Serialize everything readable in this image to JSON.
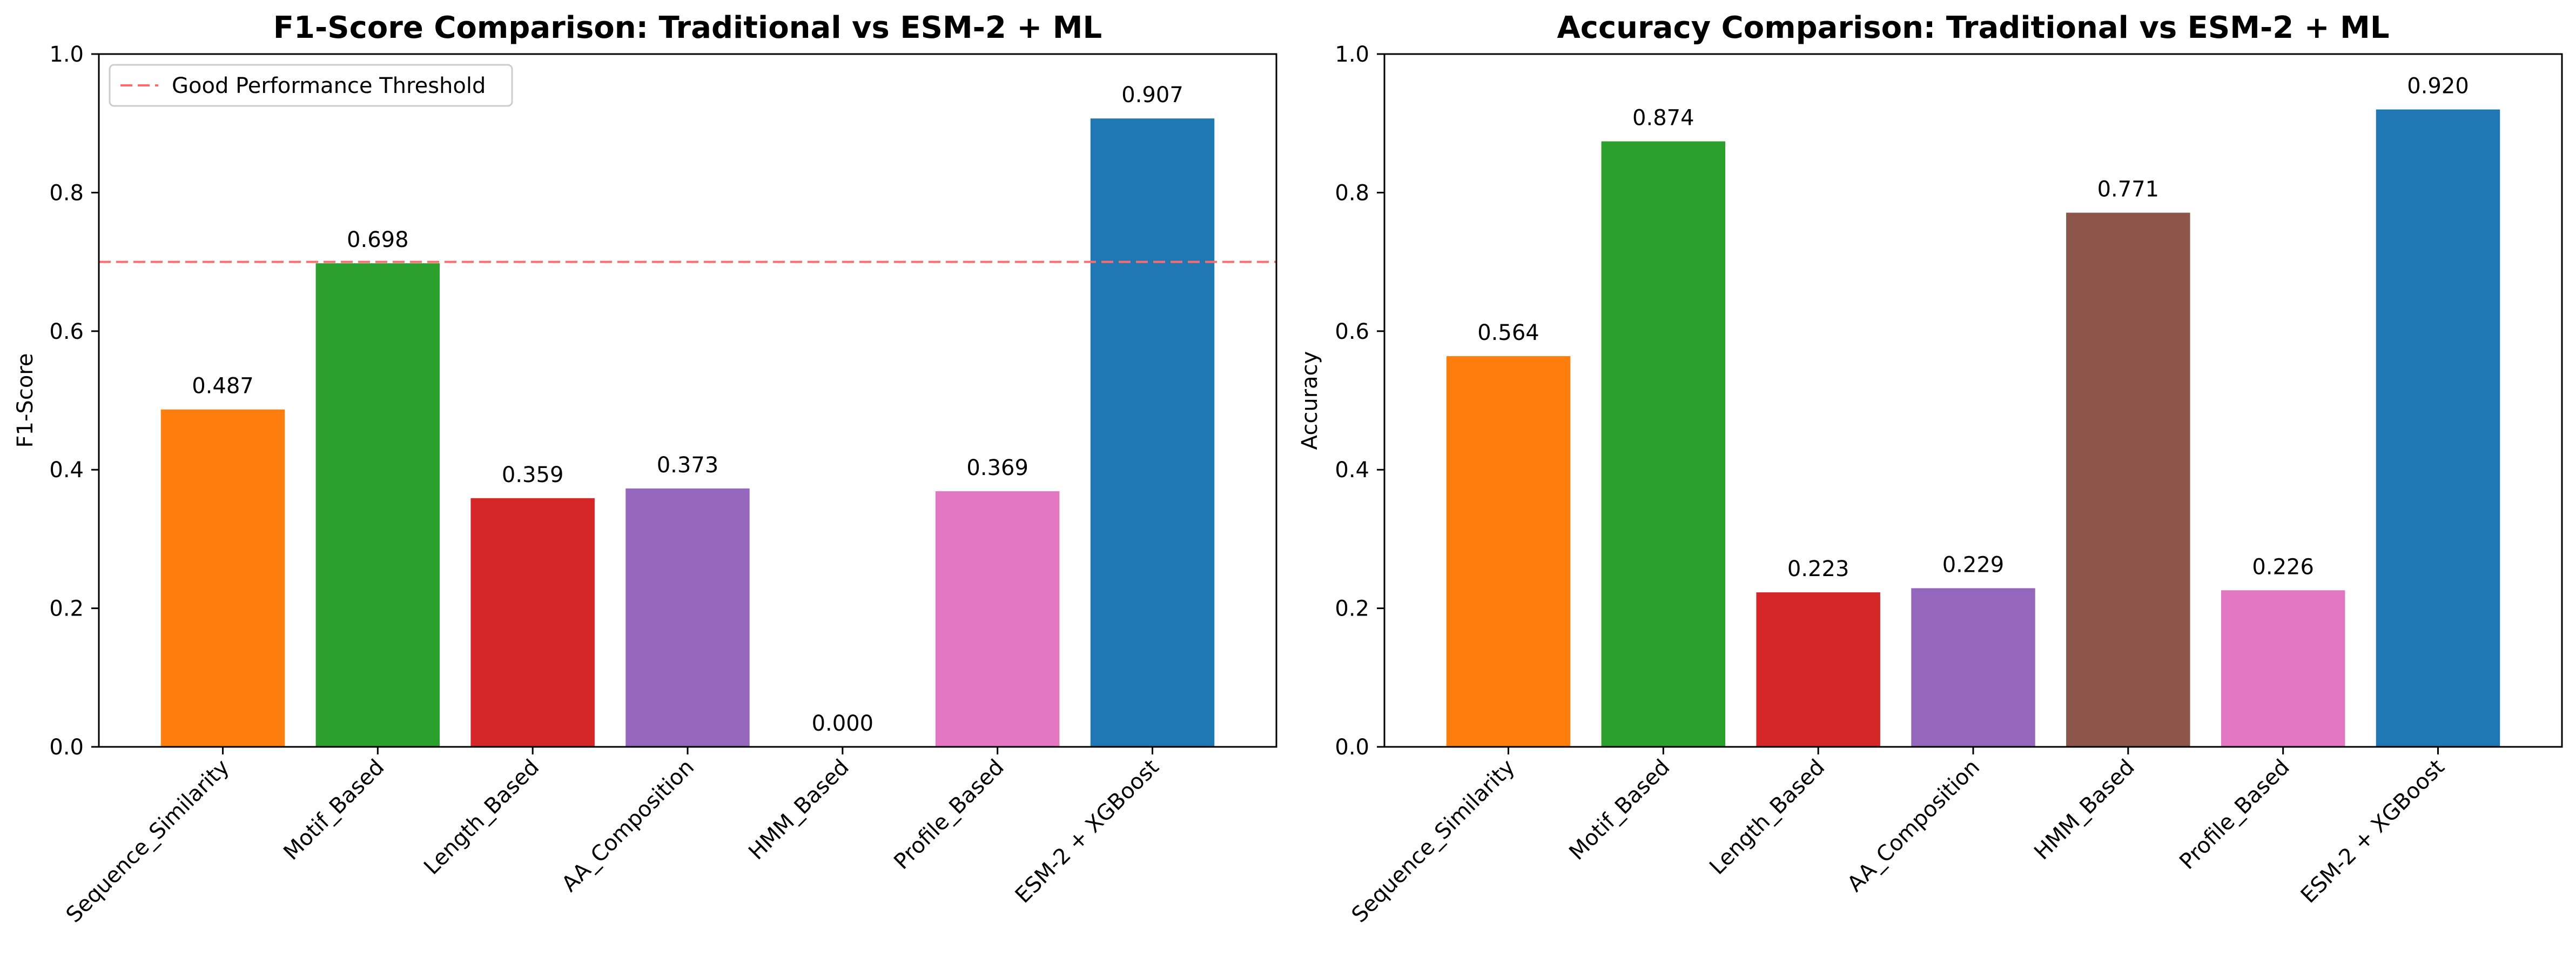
{
  "chart_data": [
    {
      "type": "bar",
      "title": "F1-Score Comparison: Traditional vs ESM-2 + ML",
      "xlabel": "",
      "ylabel": "F1-Score",
      "ylim": [
        0,
        1.0
      ],
      "yticks": [
        "0.0",
        "0.2",
        "0.4",
        "0.6",
        "0.8",
        "1.0"
      ],
      "categories": [
        "Sequence_Similarity",
        "Motif_Based",
        "Length_Based",
        "AA_Composition",
        "HMM_Based",
        "Profile_Based",
        "ESM-2 + XGBoost"
      ],
      "values": [
        0.487,
        0.698,
        0.359,
        0.373,
        0.0,
        0.369,
        0.907
      ],
      "value_labels": [
        "0.487",
        "0.698",
        "0.359",
        "0.373",
        "0.000",
        "0.369",
        "0.907"
      ],
      "colors": [
        "#ff7f0e",
        "#2ca02c",
        "#d62728",
        "#9467bd",
        "#8c564b",
        "#e377c2",
        "#1f77b4"
      ],
      "threshold": {
        "value": 0.7,
        "label": "Good Performance Threshold",
        "color": "#ff6b6b"
      },
      "legend_position": "top-left",
      "grid": false
    },
    {
      "type": "bar",
      "title": "Accuracy Comparison: Traditional vs ESM-2 + ML",
      "xlabel": "",
      "ylabel": "Accuracy",
      "ylim": [
        0,
        1.0
      ],
      "yticks": [
        "0.0",
        "0.2",
        "0.4",
        "0.6",
        "0.8",
        "1.0"
      ],
      "categories": [
        "Sequence_Similarity",
        "Motif_Based",
        "Length_Based",
        "AA_Composition",
        "HMM_Based",
        "Profile_Based",
        "ESM-2 + XGBoost"
      ],
      "values": [
        0.564,
        0.874,
        0.223,
        0.229,
        0.771,
        0.226,
        0.92
      ],
      "value_labels": [
        "0.564",
        "0.874",
        "0.223",
        "0.229",
        "0.771",
        "0.226",
        "0.920"
      ],
      "colors": [
        "#ff7f0e",
        "#2ca02c",
        "#d62728",
        "#9467bd",
        "#8c564b",
        "#e377c2",
        "#1f77b4"
      ],
      "grid": false
    }
  ]
}
